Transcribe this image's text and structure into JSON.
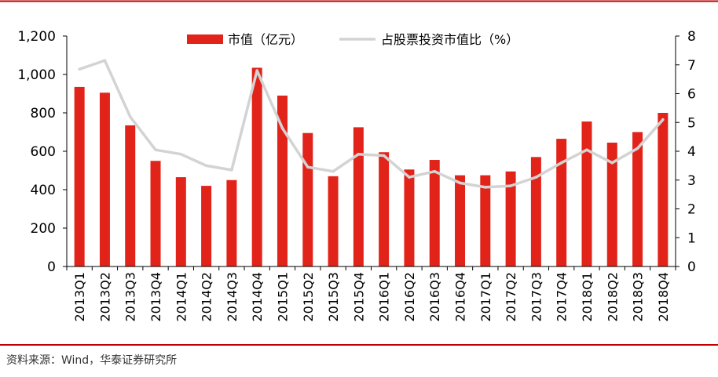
{
  "chart_data": {
    "type": "bar",
    "categories": [
      "2013Q1",
      "2013Q2",
      "2013Q3",
      "2013Q4",
      "2014Q1",
      "2014Q2",
      "2014Q3",
      "2014Q4",
      "2015Q1",
      "2015Q2",
      "2015Q3",
      "2015Q4",
      "2016Q1",
      "2016Q2",
      "2016Q3",
      "2016Q4",
      "2017Q1",
      "2017Q2",
      "2017Q3",
      "2017Q4",
      "2018Q1",
      "2018Q2",
      "2018Q3",
      "2018Q4"
    ],
    "series": [
      {
        "name": "市值（亿元）",
        "type": "bar",
        "axis": "left",
        "color": "#e2231a",
        "values": [
          935,
          905,
          735,
          550,
          465,
          420,
          450,
          1035,
          890,
          695,
          470,
          725,
          595,
          505,
          555,
          475,
          475,
          495,
          570,
          665,
          755,
          645,
          700,
          800
        ]
      },
      {
        "name": "占股票投资市值比（%）",
        "type": "line",
        "axis": "right",
        "color": "#d3d3d3",
        "values": [
          6.85,
          7.15,
          5.2,
          4.05,
          3.9,
          3.5,
          3.35,
          6.8,
          4.8,
          3.45,
          3.3,
          3.9,
          3.85,
          3.1,
          3.3,
          2.9,
          2.75,
          2.8,
          3.1,
          3.6,
          4.05,
          3.6,
          4.1,
          5.1
        ]
      }
    ],
    "y_left": {
      "ticks": [
        "0",
        "200",
        "400",
        "600",
        "800",
        "1,000",
        "1,200"
      ],
      "ylim": [
        0,
        1200
      ]
    },
    "y_right": {
      "ticks": [
        "0",
        "1",
        "2",
        "3",
        "4",
        "5",
        "6",
        "7",
        "8"
      ],
      "ylim": [
        0,
        8
      ]
    },
    "legend_position": "top-center",
    "grid": false
  },
  "source_text": "资料来源：Wind，华泰证券研究所",
  "colors": {
    "rule": "#c00000",
    "axis": "#000000"
  }
}
